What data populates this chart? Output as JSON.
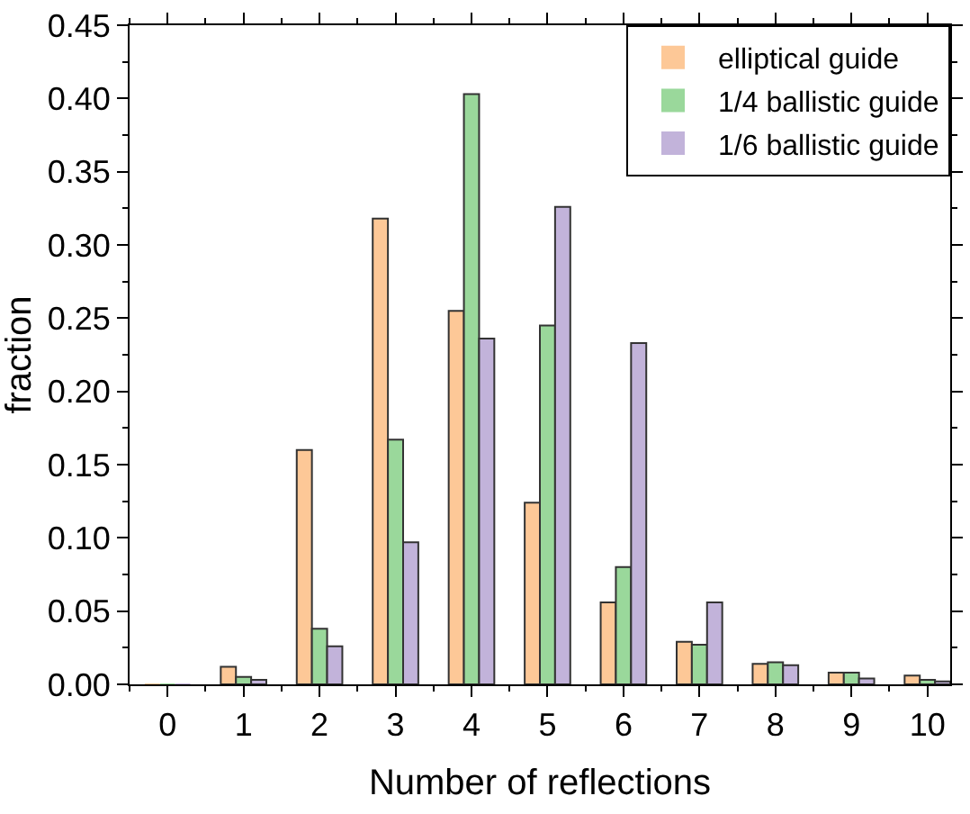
{
  "chart_data": {
    "type": "bar",
    "xlabel": "Number of reflections",
    "ylabel": "fraction",
    "x": [
      0,
      1,
      2,
      3,
      4,
      5,
      6,
      7,
      8,
      9,
      10
    ],
    "series": [
      {
        "name": "elliptical guide",
        "color": "#fdc897",
        "values": [
          0,
          0.012,
          0.16,
          0.318,
          0.255,
          0.124,
          0.056,
          0.029,
          0.014,
          0.008,
          0.006
        ]
      },
      {
        "name": "1/4 ballistic guide",
        "color": "#9ad89b",
        "values": [
          0,
          0.005,
          0.038,
          0.167,
          0.403,
          0.245,
          0.08,
          0.027,
          0.015,
          0.008,
          0.003
        ]
      },
      {
        "name": "1/6 ballistic guide",
        "color": "#c2b3da",
        "values": [
          0,
          0.003,
          0.026,
          0.097,
          0.236,
          0.326,
          0.233,
          0.056,
          0.013,
          0.004,
          0.002
        ]
      }
    ],
    "xlim": [
      -0.5,
      10.3
    ],
    "xticks": [
      0,
      1,
      2,
      3,
      4,
      5,
      6,
      7,
      8,
      9,
      10
    ],
    "ylim": [
      0,
      0.45
    ],
    "yticks": [
      {
        "value": 0,
        "label": "0.00"
      },
      {
        "value": 0.05,
        "label": "0.05"
      },
      {
        "value": 0.1,
        "label": "0.10"
      },
      {
        "value": 0.15,
        "label": "0.15"
      },
      {
        "value": 0.2,
        "label": "0.20"
      },
      {
        "value": 0.25,
        "label": "0.25"
      },
      {
        "value": 0.3,
        "label": "0.30"
      },
      {
        "value": 0.35,
        "label": "0.35"
      },
      {
        "value": 0.4,
        "label": "0.40"
      },
      {
        "value": 0.45,
        "label": "0.45"
      }
    ],
    "legend": "top right"
  }
}
